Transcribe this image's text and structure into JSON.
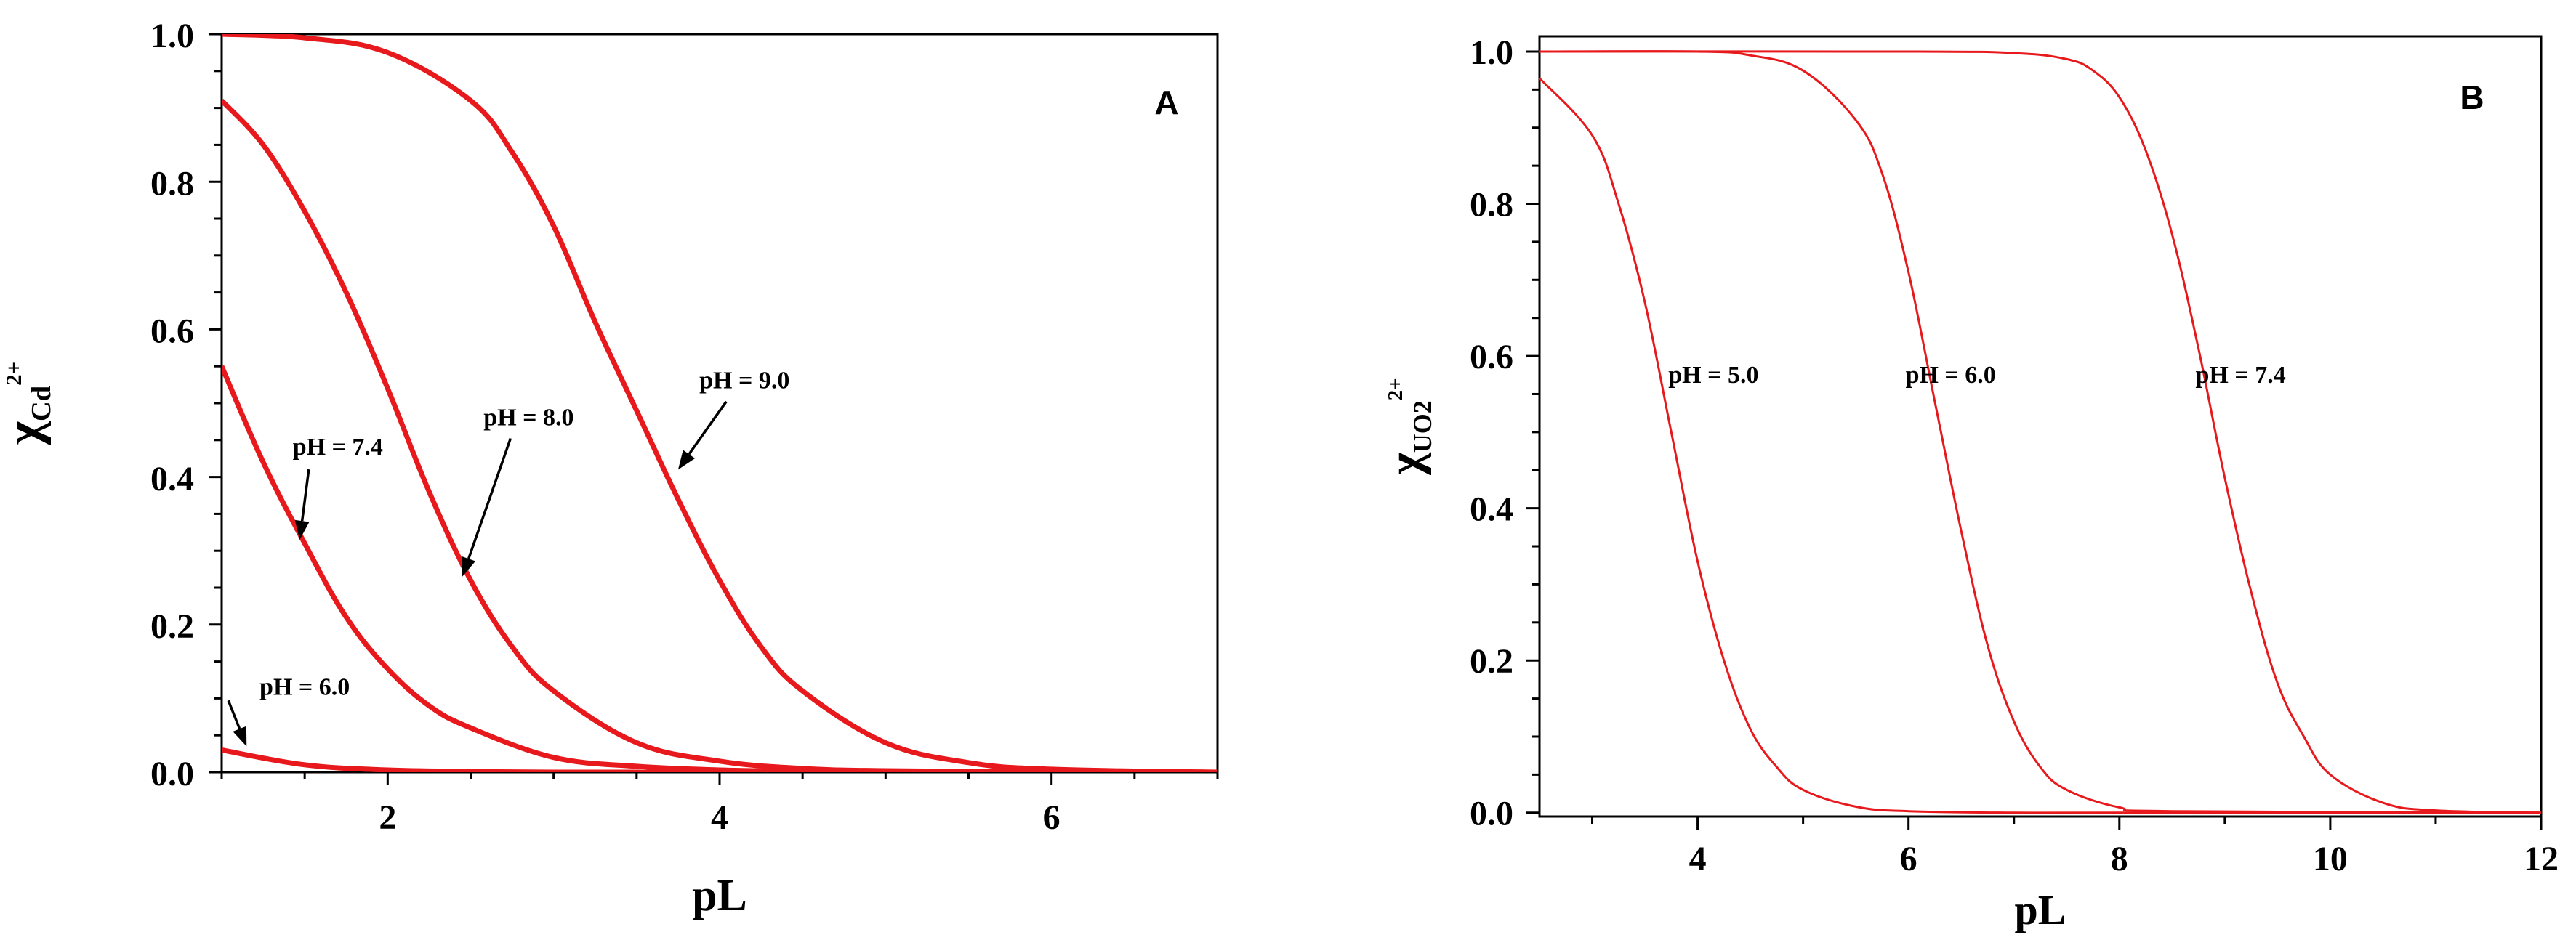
{
  "chart_data": [
    {
      "type": "line",
      "panel_label": "A",
      "xlabel": "pL",
      "ylabel": {
        "main": "χ",
        "sub": "Cd",
        "sup": "2+"
      },
      "xlim": [
        1,
        7
      ],
      "ylim": [
        0,
        1
      ],
      "xticks": [
        2,
        4,
        6
      ],
      "yticks": [
        0.0,
        0.2,
        0.4,
        0.6,
        0.8,
        1.0
      ],
      "ytick_labels": [
        "0.0",
        "0.2",
        "0.4",
        "0.6",
        "0.8",
        "1.0"
      ],
      "line_color": "#e8191c",
      "series": [
        {
          "name": "pH = 6.0",
          "x": [
            1.0,
            1.5,
            2.0,
            2.5,
            3.0,
            4.0,
            5.0,
            6.0,
            7.0
          ],
          "y": [
            0.03,
            0.01,
            0.003,
            0.001,
            0.0,
            0.0,
            0.0,
            0.0,
            0.0
          ]
        },
        {
          "name": "pH = 7.4",
          "x": [
            1.0,
            1.25,
            1.5,
            1.75,
            2.0,
            2.25,
            2.5,
            3.0,
            3.5,
            4.0,
            4.5,
            5.0,
            6.0,
            7.0
          ],
          "y": [
            0.55,
            0.42,
            0.31,
            0.21,
            0.14,
            0.09,
            0.06,
            0.02,
            0.008,
            0.003,
            0.001,
            0.0,
            0.0,
            0.0
          ]
        },
        {
          "name": "pH = 8.0",
          "x": [
            1.0,
            1.25,
            1.5,
            1.75,
            2.0,
            2.25,
            2.5,
            2.75,
            3.0,
            3.5,
            4.0,
            4.5,
            5.0,
            6.0,
            7.0
          ],
          "y": [
            0.91,
            0.85,
            0.76,
            0.65,
            0.52,
            0.38,
            0.26,
            0.17,
            0.11,
            0.04,
            0.015,
            0.005,
            0.002,
            0.0,
            0.0
          ]
        },
        {
          "name": "pH = 9.0",
          "x": [
            1.0,
            1.5,
            2.0,
            2.5,
            2.75,
            3.0,
            3.25,
            3.5,
            3.75,
            4.0,
            4.25,
            4.5,
            5.0,
            5.5,
            6.0,
            7.0
          ],
          "y": [
            1.0,
            0.995,
            0.975,
            0.91,
            0.84,
            0.74,
            0.61,
            0.49,
            0.37,
            0.26,
            0.17,
            0.11,
            0.04,
            0.013,
            0.004,
            0.0
          ]
        }
      ],
      "annotations": [
        {
          "text": "pH = 9.0",
          "tx": 4.15,
          "ty": 0.52,
          "px": 3.75,
          "py": 0.41
        },
        {
          "text": "pH = 8.0",
          "tx": 2.85,
          "ty": 0.47,
          "px": 2.45,
          "py": 0.265
        },
        {
          "text": "pH = 7.4",
          "tx": 1.7,
          "ty": 0.43,
          "px": 1.47,
          "py": 0.315
        },
        {
          "text": "pH = 6.0",
          "tx": 1.5,
          "ty": 0.105,
          "px": 1.15,
          "py": 0.035
        }
      ]
    },
    {
      "type": "line",
      "panel_label": "B",
      "xlabel": "pL",
      "ylabel": {
        "main": "χ",
        "sub": "UO2",
        "sup": "2+"
      },
      "xlim": [
        2.5,
        12
      ],
      "ylim": [
        -0.005,
        1.02
      ],
      "xticks": [
        4,
        6,
        8,
        10,
        12
      ],
      "yticks": [
        0.0,
        0.2,
        0.4,
        0.6,
        0.8,
        1.0
      ],
      "ytick_labels": [
        "0.0",
        "0.2",
        "0.4",
        "0.6",
        "0.8",
        "1.0"
      ],
      "line_color": "#e8191c",
      "series": [
        {
          "name": "pH = 5.0",
          "x": [
            2.5,
            3.0,
            3.25,
            3.5,
            3.75,
            4.0,
            4.25,
            4.5,
            4.75,
            5.0,
            5.5,
            6.0,
            7.0,
            8.0,
            12.0
          ],
          "y": [
            0.965,
            0.89,
            0.8,
            0.67,
            0.5,
            0.33,
            0.2,
            0.11,
            0.06,
            0.03,
            0.008,
            0.002,
            0.0,
            0.0,
            0.0
          ]
        },
        {
          "name": "pH = 6.0",
          "x": [
            2.5,
            4.0,
            4.5,
            5.0,
            5.5,
            5.75,
            6.0,
            6.25,
            6.5,
            6.75,
            7.0,
            7.25,
            7.5,
            8.0,
            8.5,
            12.0
          ],
          "y": [
            1.0,
            1.0,
            0.995,
            0.975,
            0.91,
            0.84,
            0.71,
            0.54,
            0.37,
            0.22,
            0.12,
            0.06,
            0.03,
            0.007,
            0.002,
            0.0
          ]
        },
        {
          "name": "pH = 7.4",
          "x": [
            2.5,
            6.0,
            7.0,
            7.5,
            7.75,
            8.0,
            8.25,
            8.5,
            8.75,
            9.0,
            9.25,
            9.5,
            9.75,
            10.0,
            10.5,
            11.0,
            12.0
          ],
          "y": [
            1.0,
            1.0,
            0.998,
            0.99,
            0.975,
            0.94,
            0.87,
            0.76,
            0.61,
            0.44,
            0.29,
            0.17,
            0.1,
            0.05,
            0.013,
            0.003,
            0.0
          ]
        }
      ],
      "annotations": [
        {
          "text": "pH = 5.0",
          "tx": 4.15,
          "ty": 0.565
        },
        {
          "text": "pH = 6.0",
          "tx": 6.4,
          "ty": 0.565
        },
        {
          "text": "pH = 7.4",
          "tx": 9.15,
          "ty": 0.565
        }
      ]
    }
  ]
}
